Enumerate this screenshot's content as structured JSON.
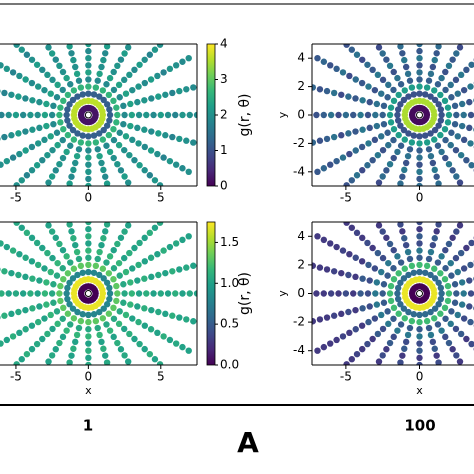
{
  "chart_data": [
    {
      "type": "scatter",
      "colormap": "viridis",
      "theta": [
        0,
        15,
        30,
        45,
        60,
        75,
        90,
        105,
        120,
        135,
        150,
        165,
        180,
        195,
        210,
        225,
        240,
        255,
        270,
        285,
        300,
        315,
        330,
        345
      ],
      "r": [
        0.5,
        1,
        1.5,
        2,
        2.5,
        3,
        3.5,
        4,
        4.5,
        5,
        5.5,
        6,
        6.5,
        7,
        7.5,
        8
      ],
      "g": [
        0.2,
        3.6,
        1.2,
        2.6,
        1.9,
        2.3,
        2.0,
        2.1,
        1.9,
        2.2,
        2.0,
        1.8,
        2.1,
        2.0,
        1.9,
        2.0
      ],
      "clim": [
        0,
        4
      ],
      "xlim": [
        -6.1,
        7.5
      ],
      "ylim": [
        -5,
        5
      ],
      "xticks": [
        -5,
        0,
        5
      ],
      "colorbar_ticks": [
        0,
        1,
        2,
        3,
        4
      ],
      "colorbar_label": "g(r, θ)"
    },
    {
      "type": "scatter",
      "colormap": "viridis",
      "theta": [
        0,
        15,
        30,
        45,
        60,
        75,
        90,
        105,
        120,
        135,
        150,
        165,
        180,
        195,
        210,
        225,
        240,
        255,
        270,
        285,
        300,
        315,
        330,
        345
      ],
      "r": [
        0.5,
        1,
        1.5,
        2,
        2.5,
        3,
        3.5,
        4,
        4.5,
        5,
        5.5,
        6,
        6.5,
        7,
        7.5,
        8
      ],
      "g": [
        0.1,
        3.5,
        1.0,
        2.2,
        1.2,
        1.5,
        1.0,
        1.6,
        1.1,
        1.4,
        0.9,
        1.5,
        1.2,
        1.0,
        1.3,
        1.1
      ],
      "clim": [
        0,
        4
      ],
      "xlim": [
        -7.3,
        3.7
      ],
      "ylim": [
        -5,
        5
      ],
      "xticks": [
        -5,
        0
      ],
      "yticks": [
        -4,
        -2,
        0,
        2,
        4
      ],
      "ylabel": "y"
    },
    {
      "type": "scatter",
      "colormap": "viridis",
      "theta": [
        0,
        15,
        30,
        45,
        60,
        75,
        90,
        105,
        120,
        135,
        150,
        165,
        180,
        195,
        210,
        225,
        240,
        255,
        270,
        285,
        300,
        315,
        330,
        345
      ],
      "r": [
        0.5,
        1,
        1.5,
        2,
        2.5,
        3,
        3.5,
        4,
        4.5,
        5,
        5.5,
        6,
        6.5,
        7,
        7.5,
        8
      ],
      "g": [
        0.0,
        1.7,
        0.8,
        1.3,
        1.05,
        1.15,
        1.0,
        1.1,
        1.0,
        1.05,
        1.0,
        1.1,
        1.0,
        1.05,
        1.0,
        1.0
      ],
      "clim": [
        0,
        1.75
      ],
      "xlim": [
        -6.1,
        7.5
      ],
      "ylim": [
        -5,
        5
      ],
      "xticks": [
        -5,
        0,
        5
      ],
      "xlabel": "x",
      "colorbar_ticks": [
        {
          "value": 0,
          "label": "0.0"
        },
        {
          "value": 0.5,
          "label": "0.5"
        },
        {
          "value": 1,
          "label": "1.0"
        },
        {
          "value": 1.5,
          "label": "1.5"
        }
      ],
      "colorbar_label": "g(r, θ)"
    },
    {
      "type": "scatter",
      "colormap": "viridis",
      "theta": [
        0,
        15,
        30,
        45,
        60,
        75,
        90,
        105,
        120,
        135,
        150,
        165,
        180,
        195,
        210,
        225,
        240,
        255,
        270,
        285,
        300,
        315,
        330,
        345
      ],
      "r": [
        0.5,
        1,
        1.5,
        2,
        2.5,
        3,
        3.5,
        4,
        4.5,
        5,
        5.5,
        6,
        6.5,
        7,
        7.5,
        8
      ],
      "g": [
        0.0,
        1.7,
        0.6,
        1.2,
        0.5,
        0.7,
        0.4,
        0.5,
        0.3,
        0.4,
        0.3,
        0.35,
        0.3,
        0.3,
        0.3,
        0.3
      ],
      "clim": [
        0,
        1.75
      ],
      "xlim": [
        -7.3,
        3.7
      ],
      "ylim": [
        -5,
        5
      ],
      "xticks": [
        -5,
        0
      ],
      "yticks": [
        -4,
        -2,
        0,
        2,
        4
      ],
      "xlabel": "x",
      "ylabel": "y"
    }
  ],
  "captions": {
    "left": "1",
    "center": "A",
    "right": "100"
  }
}
